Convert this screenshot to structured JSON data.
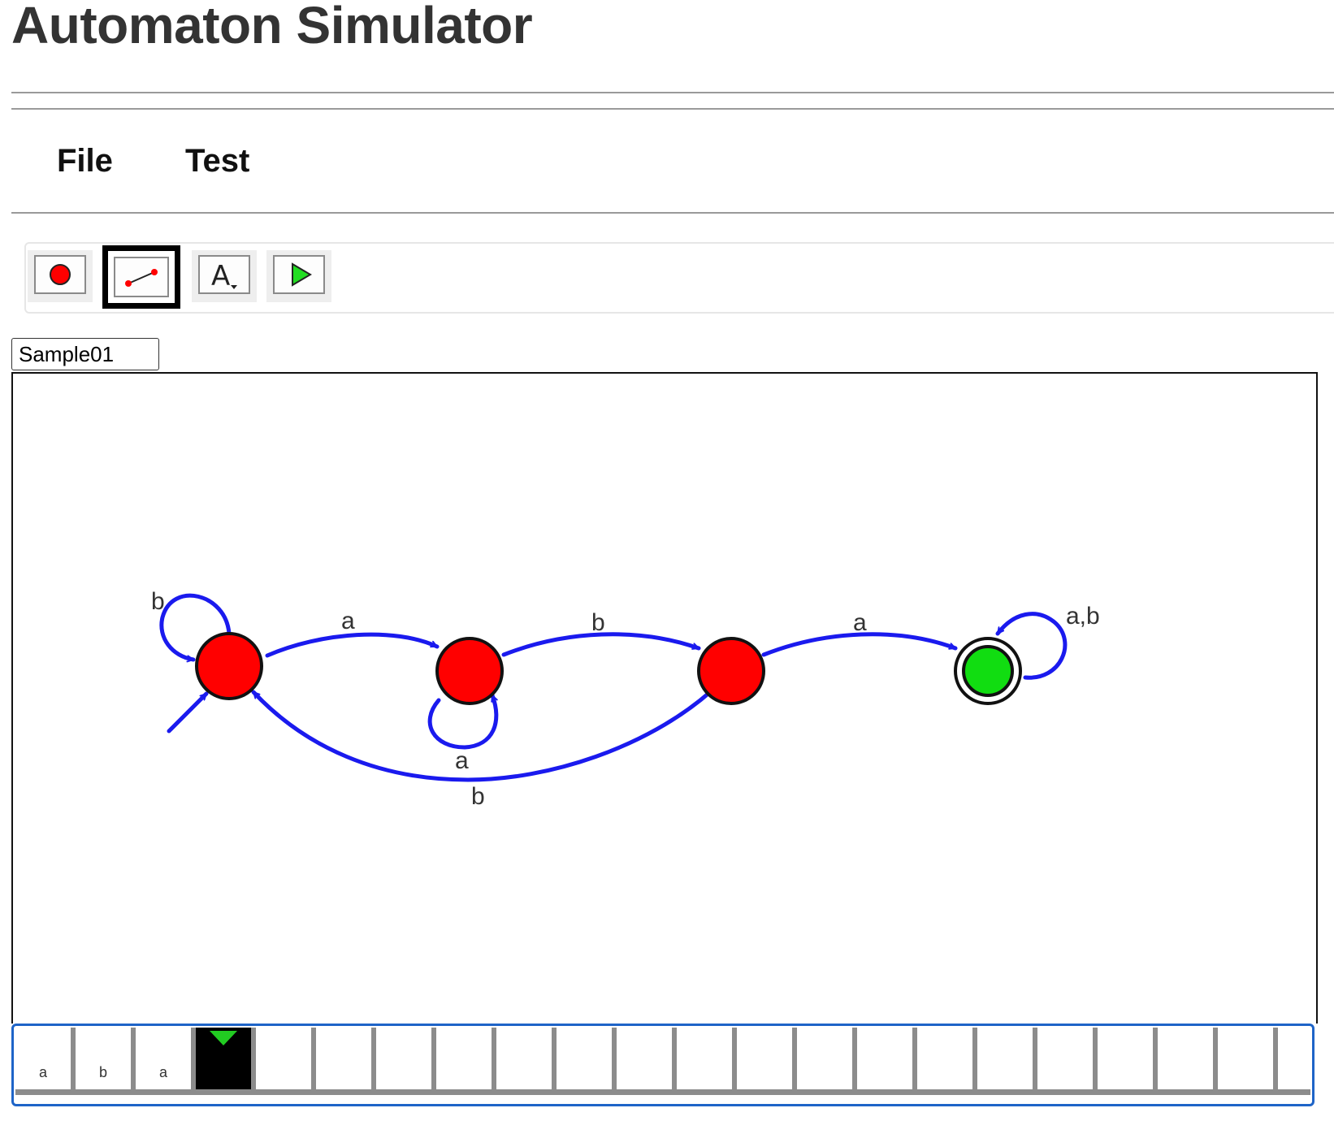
{
  "app": {
    "title": "Automaton Simulator"
  },
  "menu": {
    "items": [
      "File",
      "Test"
    ]
  },
  "toolbar": {
    "tools": [
      {
        "name": "state-tool",
        "icon": "red-circle-icon",
        "selected": false
      },
      {
        "name": "transition-tool",
        "icon": "edge-line-icon",
        "selected": true
      },
      {
        "name": "label-tool",
        "icon": "text-a-dropdown-icon",
        "selected": false
      },
      {
        "name": "run-tool",
        "icon": "green-play-icon",
        "selected": false
      }
    ]
  },
  "automaton": {
    "name": "Sample01",
    "colors": {
      "state_fill": "#ff0000",
      "accept_fill": "#11dd11",
      "edge": "#1a1aee",
      "outline": "#111111"
    },
    "states": [
      {
        "id": "q0",
        "initial": true,
        "accepting": false
      },
      {
        "id": "q1",
        "initial": false,
        "accepting": false
      },
      {
        "id": "q2",
        "initial": false,
        "accepting": false
      },
      {
        "id": "q3",
        "initial": false,
        "accepting": true
      }
    ],
    "transitions": [
      {
        "from": "q0",
        "to": "q0",
        "label": "b"
      },
      {
        "from": "q0",
        "to": "q1",
        "label": "a"
      },
      {
        "from": "q1",
        "to": "q1",
        "label": "a"
      },
      {
        "from": "q1",
        "to": "q2",
        "label": "b"
      },
      {
        "from": "q2",
        "to": "q3",
        "label": "a"
      },
      {
        "from": "q2",
        "to": "q0",
        "label": "b"
      },
      {
        "from": "q3",
        "to": "q3",
        "label": "a,b"
      }
    ]
  },
  "tape": {
    "cells": [
      "a",
      "b",
      "a",
      "",
      "",
      "",
      "",
      "",
      "",
      "",
      "",
      "",
      "",
      "",
      "",
      "",
      "",
      "",
      "",
      "",
      ""
    ],
    "head_index": 3,
    "head_color": "#22cc22"
  }
}
